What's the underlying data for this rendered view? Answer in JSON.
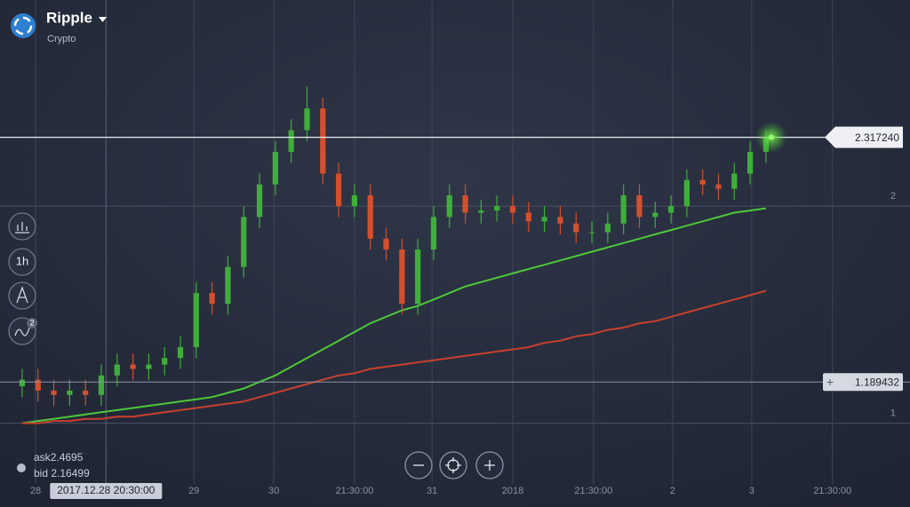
{
  "header": {
    "title": "Ripple",
    "subtitle": "Crypto"
  },
  "toolbar": {
    "timeframe": "1h",
    "indicator_count": 2
  },
  "quote": {
    "ask": {
      "label": "ask",
      "value": 2.4695
    },
    "bid": {
      "label": "bid ",
      "value": 2.16499
    }
  },
  "chart_data": {
    "type": "candlestick",
    "open": [
      1.17,
      1.2,
      1.15,
      1.13,
      1.15,
      1.13,
      1.22,
      1.27,
      1.25,
      1.27,
      1.3,
      1.35,
      1.6,
      1.55,
      1.72,
      1.95,
      2.1,
      2.25,
      2.35,
      2.45,
      2.15,
      2.0,
      2.05,
      1.85,
      1.8,
      1.55,
      1.8,
      1.95,
      2.05,
      1.97,
      1.98,
      2.0,
      1.97,
      1.93,
      1.95,
      1.92,
      1.88,
      1.88,
      1.92,
      2.05,
      1.95,
      1.97,
      2.0,
      2.12,
      2.1,
      2.08,
      2.15,
      2.25
    ],
    "high": [
      1.25,
      1.25,
      1.2,
      1.2,
      1.2,
      1.27,
      1.32,
      1.32,
      1.32,
      1.35,
      1.4,
      1.65,
      1.65,
      1.77,
      2.0,
      2.15,
      2.3,
      2.4,
      2.55,
      2.5,
      2.2,
      2.1,
      2.1,
      1.9,
      1.85,
      1.85,
      2.0,
      2.1,
      2.1,
      2.03,
      2.05,
      2.05,
      2.02,
      2.0,
      2.0,
      1.97,
      1.93,
      1.97,
      2.1,
      2.1,
      2.02,
      2.05,
      2.17,
      2.17,
      2.15,
      2.2,
      2.3,
      2.35
    ],
    "low": [
      1.12,
      1.1,
      1.08,
      1.08,
      1.08,
      1.08,
      1.17,
      1.2,
      1.2,
      1.22,
      1.25,
      1.3,
      1.5,
      1.5,
      1.67,
      1.9,
      2.05,
      2.2,
      2.3,
      2.1,
      1.95,
      1.95,
      1.8,
      1.75,
      1.5,
      1.5,
      1.75,
      1.9,
      1.92,
      1.92,
      1.93,
      1.92,
      1.88,
      1.88,
      1.87,
      1.83,
      1.83,
      1.83,
      1.87,
      1.9,
      1.9,
      1.92,
      1.95,
      2.05,
      2.03,
      2.03,
      2.1,
      2.2
    ],
    "close": [
      1.2,
      1.15,
      1.13,
      1.15,
      1.13,
      1.22,
      1.27,
      1.25,
      1.27,
      1.3,
      1.35,
      1.6,
      1.55,
      1.72,
      1.95,
      2.1,
      2.25,
      2.35,
      2.45,
      2.15,
      2.0,
      2.05,
      1.85,
      1.8,
      1.55,
      1.8,
      1.95,
      2.05,
      1.97,
      1.98,
      2.0,
      1.97,
      1.93,
      1.95,
      1.92,
      1.88,
      1.88,
      1.92,
      2.05,
      1.95,
      1.97,
      2.0,
      2.12,
      2.1,
      2.08,
      2.15,
      2.25,
      2.317
    ],
    "up_color": "#3fae3a",
    "down_color": "#d2502f",
    "lines": [
      {
        "color": "#4cc83a",
        "values": [
          1.0,
          1.01,
          1.02,
          1.03,
          1.04,
          1.05,
          1.06,
          1.07,
          1.08,
          1.09,
          1.1,
          1.11,
          1.12,
          1.14,
          1.16,
          1.19,
          1.22,
          1.26,
          1.3,
          1.34,
          1.38,
          1.42,
          1.46,
          1.49,
          1.52,
          1.54,
          1.57,
          1.6,
          1.63,
          1.65,
          1.67,
          1.69,
          1.71,
          1.73,
          1.75,
          1.77,
          1.79,
          1.81,
          1.83,
          1.85,
          1.87,
          1.89,
          1.91,
          1.93,
          1.95,
          1.97,
          1.98,
          1.99
        ]
      },
      {
        "color": "#c8402e",
        "values": [
          1.0,
          1.0,
          1.01,
          1.01,
          1.02,
          1.02,
          1.03,
          1.03,
          1.04,
          1.05,
          1.06,
          1.07,
          1.08,
          1.09,
          1.1,
          1.12,
          1.14,
          1.16,
          1.18,
          1.2,
          1.22,
          1.23,
          1.25,
          1.26,
          1.27,
          1.28,
          1.29,
          1.3,
          1.31,
          1.32,
          1.33,
          1.34,
          1.35,
          1.37,
          1.38,
          1.4,
          1.41,
          1.43,
          1.44,
          1.46,
          1.47,
          1.49,
          1.51,
          1.53,
          1.55,
          1.57,
          1.59,
          1.61
        ]
      }
    ],
    "xlim": [
      -1.4,
      56.1
    ],
    "xticks": [
      {
        "value": 0.85,
        "label": "28"
      },
      {
        "value": 10.85,
        "label": "29"
      },
      {
        "value": 15.9,
        "label": "30"
      },
      {
        "value": 21,
        "label": "21:30:00"
      },
      {
        "value": 25.9,
        "label": "31"
      },
      {
        "value": 31,
        "label": "2018"
      },
      {
        "value": 36.1,
        "label": "21:30:00"
      },
      {
        "value": 41.1,
        "label": "2"
      },
      {
        "value": 46.1,
        "label": "3"
      },
      {
        "value": 51.2,
        "label": "21:30:00"
      }
    ],
    "cursor_time": {
      "value": 5.3,
      "label": "2017.12.28 20:30:00"
    },
    "ylim": [
      0.72,
      2.95
    ],
    "yticks": [
      1,
      2
    ],
    "current_price": {
      "value": 2.31724,
      "label": "2.317240"
    },
    "marker_price": 1.189432,
    "grid": true
  }
}
